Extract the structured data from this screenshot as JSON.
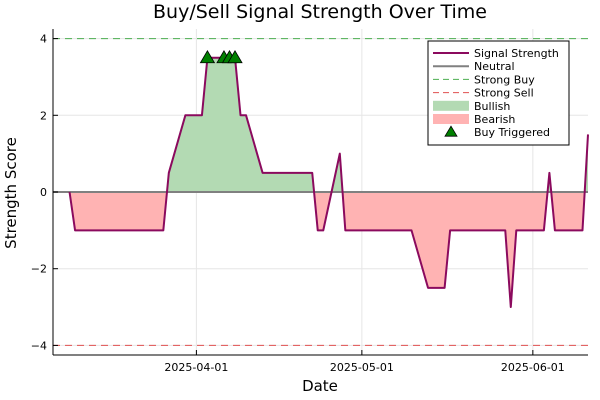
{
  "chart_data": {
    "type": "line",
    "title": "Buy/Sell Signal Strength Over Time",
    "xlabel": "Date",
    "ylabel": "Strength Score",
    "x_range": [
      "2025-03-06",
      "2025-06-11"
    ],
    "ylim": [
      -4.25,
      4.25
    ],
    "x_ticks": [
      "2025-04-01",
      "2025-05-01",
      "2025-06-01"
    ],
    "y_ticks": [
      -4,
      -2,
      0,
      2,
      4
    ],
    "y_tick_labels": [
      "−4",
      "−2",
      "0",
      "2",
      "4"
    ],
    "grid": true,
    "legend_position": "top-right",
    "legend": {
      "signal": "Signal Strength",
      "neutral": "Neutral",
      "strong_buy": "Strong Buy",
      "strong_sell": "Strong Sell",
      "bullish": "Bullish",
      "bearish": "Bearish",
      "buy_triggered": "Buy Triggered"
    },
    "thresholds": {
      "neutral": 0,
      "strong_buy": 4,
      "strong_sell": -4
    },
    "series": [
      {
        "name": "Signal Strength",
        "points": [
          {
            "x": "2025-03-09",
            "y": 0
          },
          {
            "x": "2025-03-10",
            "y": -1
          },
          {
            "x": "2025-03-26",
            "y": -1
          },
          {
            "x": "2025-03-27",
            "y": 0.5
          },
          {
            "x": "2025-03-30",
            "y": 2
          },
          {
            "x": "2025-04-02",
            "y": 2
          },
          {
            "x": "2025-04-03",
            "y": 3.5
          },
          {
            "x": "2025-04-08",
            "y": 3.5
          },
          {
            "x": "2025-04-09",
            "y": 2
          },
          {
            "x": "2025-04-10",
            "y": 2
          },
          {
            "x": "2025-04-13",
            "y": 0.5
          },
          {
            "x": "2025-04-22",
            "y": 0.5
          },
          {
            "x": "2025-04-23",
            "y": -1
          },
          {
            "x": "2025-04-24",
            "y": -1
          },
          {
            "x": "2025-04-27",
            "y": 1
          },
          {
            "x": "2025-04-28",
            "y": -1
          },
          {
            "x": "2025-05-10",
            "y": -1
          },
          {
            "x": "2025-05-13",
            "y": -2.5
          },
          {
            "x": "2025-05-16",
            "y": -2.5
          },
          {
            "x": "2025-05-17",
            "y": -1
          },
          {
            "x": "2025-05-27",
            "y": -1
          },
          {
            "x": "2025-05-28",
            "y": -3
          },
          {
            "x": "2025-05-29",
            "y": -1
          },
          {
            "x": "2025-06-03",
            "y": -1
          },
          {
            "x": "2025-06-04",
            "y": 0.5
          },
          {
            "x": "2025-06-05",
            "y": -1
          },
          {
            "x": "2025-06-10",
            "y": -1
          },
          {
            "x": "2025-06-11",
            "y": 1.5
          }
        ]
      }
    ],
    "buy_triggered": [
      {
        "x": "2025-04-03",
        "y": 3.5
      },
      {
        "x": "2025-04-06",
        "y": 3.5
      },
      {
        "x": "2025-04-07",
        "y": 3.5
      },
      {
        "x": "2025-04-08",
        "y": 3.5
      }
    ],
    "colors": {
      "signal": "#8b0a5e",
      "neutral": "#808080",
      "strong_buy": "#4caf50",
      "strong_sell": "#e05050",
      "bullish_fill": "#b3dab3",
      "bearish_fill": "#ffb3b3",
      "buy_marker": "#008000",
      "grid": "#e6e6e6",
      "frame": "#000000"
    }
  }
}
